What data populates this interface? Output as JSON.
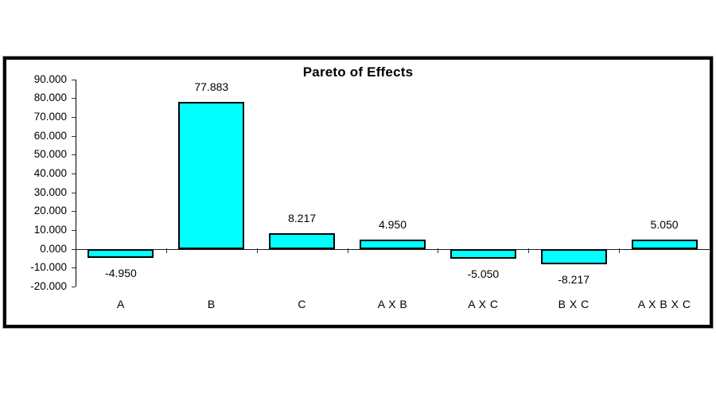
{
  "chart_data": {
    "type": "bar",
    "title": "Pareto of Effects",
    "categories": [
      "A",
      "B",
      "C",
      "A X B",
      "A X C",
      "B X C",
      "A X B X C"
    ],
    "values": [
      -4.95,
      77.883,
      8.217,
      4.95,
      -5.05,
      -8.217,
      5.05
    ],
    "value_labels": [
      "-4.950",
      "77.883",
      "8.217",
      "4.950",
      "-5.050",
      "-8.217",
      "5.050"
    ],
    "y_tick_labels": [
      "90.000",
      "80.000",
      "70.000",
      "60.000",
      "50.000",
      "40.000",
      "30.000",
      "20.000",
      "10.000",
      "0.000",
      "-10.000",
      "-20.000"
    ],
    "ylim": [
      -20,
      90
    ],
    "y_step": 10,
    "xlabel": "",
    "ylabel": "",
    "grid": "off",
    "legend": "none",
    "bar_fill_color": "#00FFFF",
    "bar_border_color": "#000000",
    "frame_border_color": "#000000",
    "text_color": "#000000",
    "background_color": "#FFFFFF"
  }
}
